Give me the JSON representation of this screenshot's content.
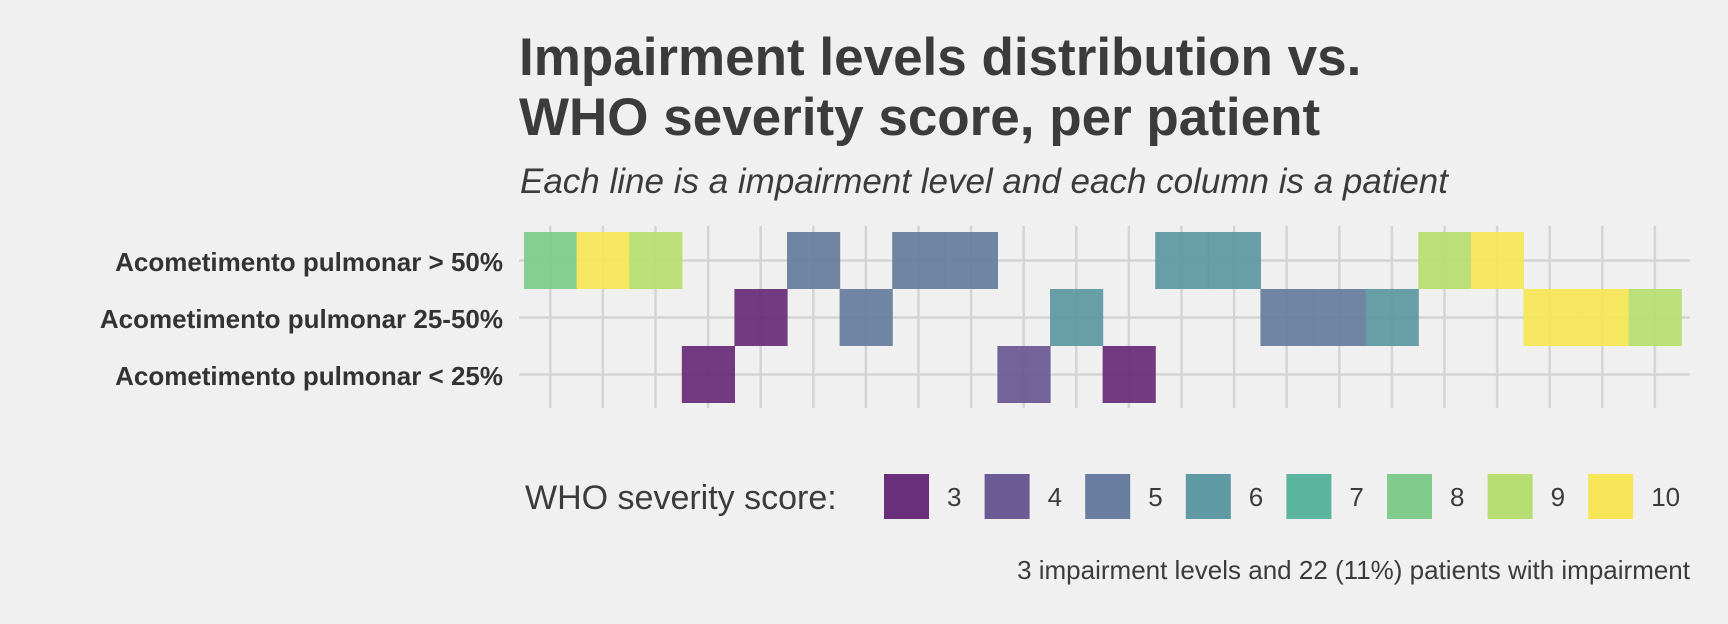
{
  "chart_data": {
    "type": "heatmap",
    "title_lines": [
      "Impairment levels distribution vs.",
      "WHO severity score, per patient"
    ],
    "subtitle": "Each line is a impairment level and each column is a patient",
    "rows": [
      "Acometimento pulmonar > 50%",
      "Acometimento pulmonar 25-50%",
      "Acometimento pulmonar < 25%"
    ],
    "n_columns": 22,
    "cells": [
      {
        "row": 0,
        "col": 0,
        "score": 8
      },
      {
        "row": 0,
        "col": 1,
        "score": 10
      },
      {
        "row": 0,
        "col": 2,
        "score": 9
      },
      {
        "row": 2,
        "col": 3,
        "score": 3
      },
      {
        "row": 1,
        "col": 4,
        "score": 3
      },
      {
        "row": 0,
        "col": 5,
        "score": 5
      },
      {
        "row": 1,
        "col": 6,
        "score": 5
      },
      {
        "row": 0,
        "col": 7,
        "score": 5
      },
      {
        "row": 0,
        "col": 8,
        "score": 5
      },
      {
        "row": 2,
        "col": 9,
        "score": 4
      },
      {
        "row": 1,
        "col": 10,
        "score": 6
      },
      {
        "row": 2,
        "col": 11,
        "score": 3
      },
      {
        "row": 0,
        "col": 12,
        "score": 6
      },
      {
        "row": 0,
        "col": 13,
        "score": 6
      },
      {
        "row": 1,
        "col": 14,
        "score": 5
      },
      {
        "row": 1,
        "col": 15,
        "score": 5
      },
      {
        "row": 1,
        "col": 16,
        "score": 6
      },
      {
        "row": 0,
        "col": 17,
        "score": 9
      },
      {
        "row": 0,
        "col": 18,
        "score": 10
      },
      {
        "row": 1,
        "col": 19,
        "score": 10
      },
      {
        "row": 1,
        "col": 20,
        "score": 10
      },
      {
        "row": 1,
        "col": 21,
        "score": 9
      }
    ],
    "legend": {
      "title": "WHO severity score:",
      "items": [
        {
          "label": "3",
          "color": "#6a2f7a"
        },
        {
          "label": "4",
          "color": "#6b5b94"
        },
        {
          "label": "5",
          "color": "#687d9f"
        },
        {
          "label": "6",
          "color": "#5f99a3"
        },
        {
          "label": "7",
          "color": "#5bb49d"
        },
        {
          "label": "8",
          "color": "#81cb8c"
        },
        {
          "label": "9",
          "color": "#b7de73"
        },
        {
          "label": "10",
          "color": "#f6e657"
        }
      ]
    },
    "caption": "3 impairment levels and 22 (11%) patients with impairment",
    "grid": true
  }
}
